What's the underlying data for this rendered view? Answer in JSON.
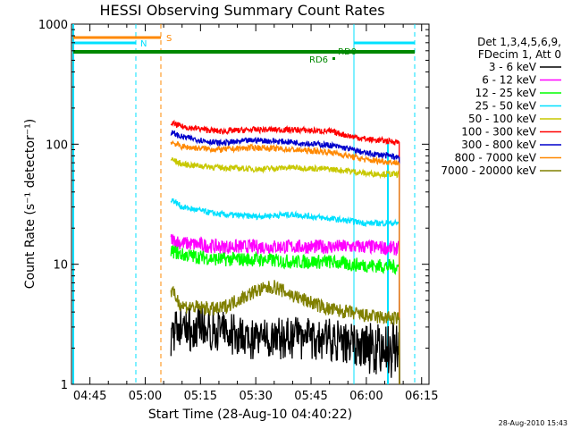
{
  "chart_data": {
    "type": "line",
    "title": "HESSI Observing Summary Count Rates",
    "xlabel": "Start Time (28-Aug-10 04:40:22)",
    "ylabel": "Count Rate (s⁻¹ detector⁻¹)",
    "y_scale": "log",
    "ylim": [
      1,
      1000
    ],
    "xlim": [
      "04:40",
      "06:17"
    ],
    "x_tick_labels": [
      "04:45",
      "05:00",
      "05:15",
      "05:30",
      "05:45",
      "06:00",
      "06:15"
    ],
    "y_tick_labels": [
      "1",
      "10",
      "100",
      "1000"
    ],
    "legend_header": [
      "Det 1,3,4,5,6,9,",
      "FDecim 1, Att 0"
    ],
    "legend_position": "right",
    "series": [
      {
        "name": "3 - 6 keV",
        "color": "#000000",
        "points": [
          [
            "05:07",
            2.6
          ],
          [
            "05:10",
            3.2
          ],
          [
            "05:20",
            2.8
          ],
          [
            "05:30",
            2.4
          ],
          [
            "05:40",
            2.4
          ],
          [
            "05:50",
            2.4
          ],
          [
            "05:55",
            2.2
          ],
          [
            "06:00",
            1.8
          ],
          [
            "06:09",
            1.6
          ]
        ]
      },
      {
        "name": "6 - 12 keV",
        "color": "#ff00ff",
        "points": [
          [
            "05:07",
            16
          ],
          [
            "05:10",
            15
          ],
          [
            "05:20",
            14
          ],
          [
            "05:30",
            14
          ],
          [
            "05:40",
            14
          ],
          [
            "05:50",
            14
          ],
          [
            "05:55",
            14
          ],
          [
            "06:00",
            14
          ],
          [
            "06:09",
            13.5
          ]
        ]
      },
      {
        "name": "12 - 25 keV",
        "color": "#00ff00",
        "points": [
          [
            "05:07",
            13
          ],
          [
            "05:10",
            12
          ],
          [
            "05:20",
            11
          ],
          [
            "05:30",
            11
          ],
          [
            "05:40",
            10.5
          ],
          [
            "05:50",
            10.5
          ],
          [
            "05:55",
            10
          ],
          [
            "06:00",
            9.8
          ],
          [
            "06:09",
            9.5
          ]
        ]
      },
      {
        "name": "25 - 50 keV",
        "color": "#00e0ff",
        "points": [
          [
            "05:07",
            35
          ],
          [
            "05:10",
            30
          ],
          [
            "05:20",
            26
          ],
          [
            "05:30",
            25
          ],
          [
            "05:40",
            26
          ],
          [
            "05:50",
            24
          ],
          [
            "05:55",
            23
          ],
          [
            "06:00",
            22
          ],
          [
            "06:09",
            22
          ]
        ]
      },
      {
        "name": "50 - 100 keV",
        "color": "#c8c800",
        "points": [
          [
            "05:07",
            75
          ],
          [
            "05:10",
            68
          ],
          [
            "05:20",
            64
          ],
          [
            "05:30",
            62
          ],
          [
            "05:40",
            64
          ],
          [
            "05:50",
            62
          ],
          [
            "05:55",
            60
          ],
          [
            "06:00",
            57
          ],
          [
            "06:09",
            56
          ]
        ]
      },
      {
        "name": "100 - 300 keV",
        "color": "#ff0000",
        "points": [
          [
            "05:07",
            150
          ],
          [
            "05:10",
            140
          ],
          [
            "05:20",
            128
          ],
          [
            "05:30",
            132
          ],
          [
            "05:40",
            132
          ],
          [
            "05:50",
            128
          ],
          [
            "05:55",
            118
          ],
          [
            "06:00",
            110
          ],
          [
            "06:09",
            104
          ]
        ]
      },
      {
        "name": "300 - 800 keV",
        "color": "#0000cc",
        "points": [
          [
            "05:07",
            125
          ],
          [
            "05:10",
            115
          ],
          [
            "05:20",
            102
          ],
          [
            "05:30",
            108
          ],
          [
            "05:40",
            104
          ],
          [
            "05:50",
            98
          ],
          [
            "05:55",
            92
          ],
          [
            "06:00",
            84
          ],
          [
            "06:09",
            78
          ]
        ]
      },
      {
        "name": "800 - 7000 keV",
        "color": "#ff8800",
        "points": [
          [
            "05:07",
            105
          ],
          [
            "05:10",
            95
          ],
          [
            "05:20",
            90
          ],
          [
            "05:30",
            94
          ],
          [
            "05:40",
            90
          ],
          [
            "05:50",
            86
          ],
          [
            "05:55",
            80
          ],
          [
            "06:00",
            74
          ],
          [
            "06:09",
            70
          ]
        ]
      },
      {
        "name": "7000 - 20000 keV",
        "color": "#808000",
        "points": [
          [
            "05:07",
            6
          ],
          [
            "05:10",
            4.5
          ],
          [
            "05:20",
            4.2
          ],
          [
            "05:30",
            6
          ],
          [
            "05:35",
            6.5
          ],
          [
            "05:40",
            5.5
          ],
          [
            "05:50",
            4.2
          ],
          [
            "05:55",
            4
          ],
          [
            "06:00",
            3.7
          ],
          [
            "06:09",
            3.5
          ]
        ]
      }
    ],
    "markers": {
      "S": {
        "label": "S",
        "color": "#ff8800"
      },
      "N": {
        "label": "N",
        "color": "#00e0ff"
      },
      "RD0": {
        "label": "RD0",
        "color": "#008800"
      },
      "RD6": {
        "label": "RD6",
        "color": "#008800"
      }
    }
  },
  "footer_timestamp": "28-Aug-2010 15:43"
}
